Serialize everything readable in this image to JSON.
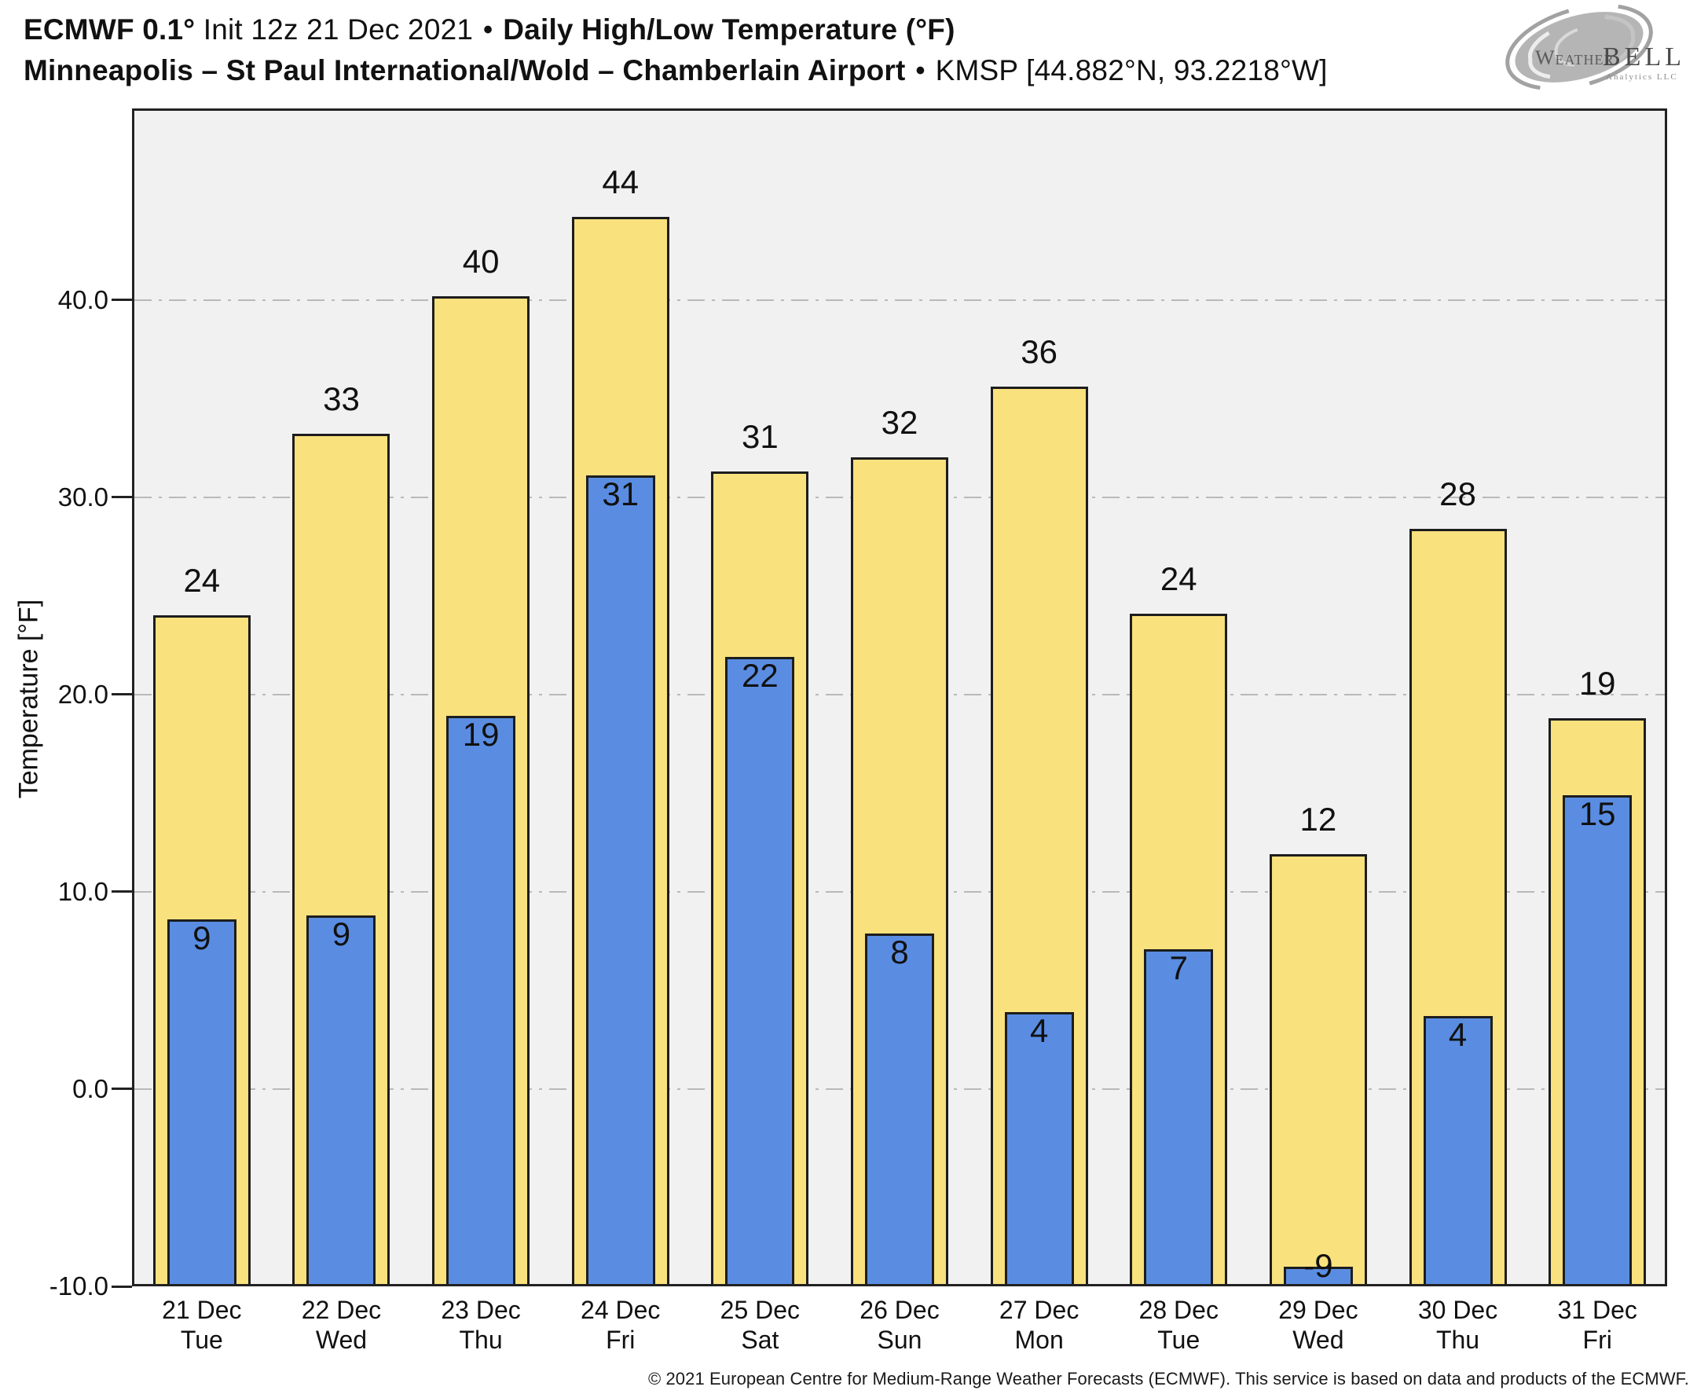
{
  "header": {
    "model": "ECMWF 0.1°",
    "init": "Init 12z 21 Dec 2021",
    "bullet": "•",
    "product": "Daily High/Low Temperature (°F)",
    "station": "Minneapolis – St Paul International/Wold – Chamberlain Airport",
    "station_id": "KMSP [44.882°N, 93.2218°W]"
  },
  "logo": {
    "weather": "Weather",
    "bell": "BELL",
    "analytics": "Analytics LLC"
  },
  "y_axis": {
    "label": "Temperature [°F]",
    "tick_labels": [
      "40.0",
      "30.0",
      "20.0",
      "10.0",
      "0.0",
      "-10.0"
    ]
  },
  "footer": "© 2021 European Centre for Medium-Range Weather Forecasts (ECMWF). This service is based on data and products of the ECMWF.",
  "chart_data": {
    "type": "bar",
    "title": "ECMWF 0.1° Init 12z 21 Dec 2021 • Daily High/Low Temperature (°F)",
    "subtitle": "Minneapolis – St Paul International/Wold – Chamberlain Airport • KMSP [44.882°N, 93.2218°W]",
    "xlabel": "",
    "ylabel": "Temperature [°F]",
    "ylim": [
      -10,
      49.7
    ],
    "yticks": [
      40,
      30,
      20,
      10,
      0,
      -10
    ],
    "grid": "horizontal-dashed",
    "legend_position": "none",
    "categories": [
      {
        "date": "21 Dec",
        "dow": "Tue"
      },
      {
        "date": "22 Dec",
        "dow": "Wed"
      },
      {
        "date": "23 Dec",
        "dow": "Thu"
      },
      {
        "date": "24 Dec",
        "dow": "Fri"
      },
      {
        "date": "25 Dec",
        "dow": "Sat"
      },
      {
        "date": "26 Dec",
        "dow": "Sun"
      },
      {
        "date": "27 Dec",
        "dow": "Mon"
      },
      {
        "date": "28 Dec",
        "dow": "Tue"
      },
      {
        "date": "29 Dec",
        "dow": "Wed"
      },
      {
        "date": "30 Dec",
        "dow": "Thu"
      },
      {
        "date": "31 Dec",
        "dow": "Fri"
      }
    ],
    "series": [
      {
        "name": "Daily High",
        "color": "#F9E17E",
        "label_values": [
          24,
          33,
          40,
          44,
          31,
          32,
          36,
          24,
          12,
          28,
          19
        ],
        "bar_tops": [
          24.0,
          33.2,
          40.2,
          44.2,
          31.3,
          32.0,
          35.6,
          24.1,
          11.9,
          28.4,
          18.8
        ]
      },
      {
        "name": "Daily Low",
        "color": "#5A8DE2",
        "label_values": [
          9,
          9,
          19,
          31,
          22,
          8,
          4,
          7,
          -9,
          4,
          15
        ],
        "bar_tops": [
          8.6,
          8.8,
          18.9,
          31.1,
          21.9,
          7.9,
          3.9,
          7.1,
          -9.0,
          3.7,
          14.9
        ]
      }
    ],
    "colors": {
      "plot_bg": "#F1F1F1",
      "grid": "#B9B9B9",
      "axis": "#222222",
      "bar_border": "#1D1D1D",
      "text": "#111111"
    }
  }
}
